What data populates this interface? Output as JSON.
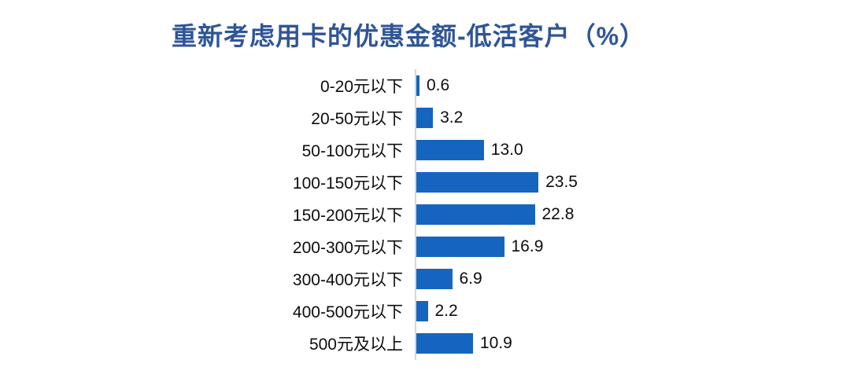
{
  "chart_data": {
    "type": "bar",
    "orientation": "horizontal",
    "title": "重新考虑用卡的优惠金额-低活客户（%）",
    "categories": [
      "0-20元以下",
      "20-50元以下",
      "50-100元以下",
      "100-150元以下",
      "150-200元以下",
      "200-300元以下",
      "300-400元以下",
      "400-500元以下",
      "500元及以上"
    ],
    "values": [
      0.6,
      3.2,
      13.0,
      23.5,
      22.8,
      16.9,
      6.9,
      2.2,
      10.9
    ],
    "value_labels": [
      "0.6",
      "3.2",
      "13.0",
      "23.5",
      "22.8",
      "16.9",
      "6.9",
      "2.2",
      "10.9"
    ],
    "xlabel": "",
    "ylabel": "",
    "xlim": [
      0,
      25
    ],
    "grid": false,
    "legend": false,
    "data_labels": true,
    "colors": {
      "bar": "#1565C0",
      "title": "#2F5597",
      "axis_line": "#D6D6D6",
      "label_text": "#0d0d0d",
      "background": "#ffffff"
    }
  }
}
